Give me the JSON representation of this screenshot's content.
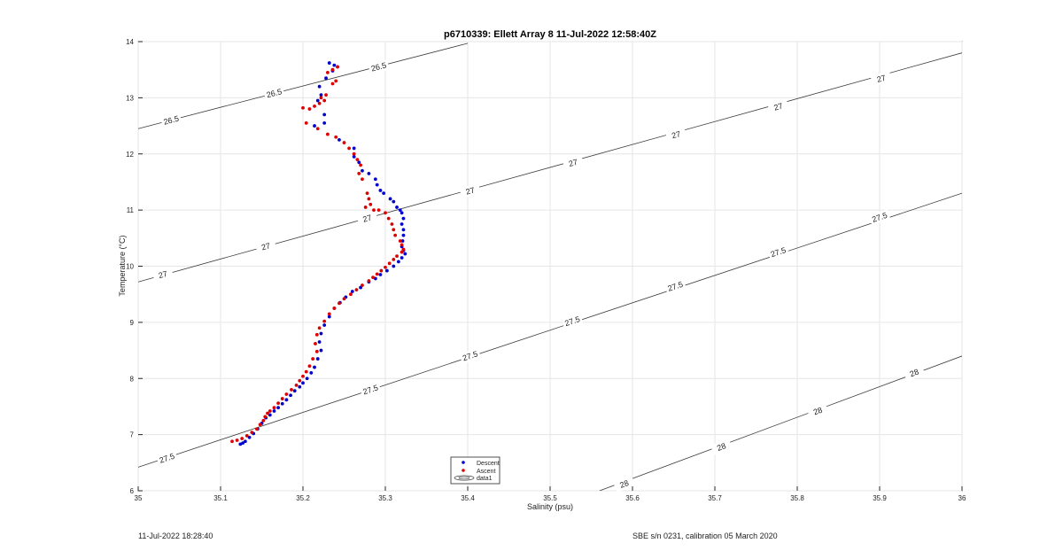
{
  "chart_data": {
    "type": "scatter",
    "title": "p6710339: Ellett Array 8 11-Jul-2022 12:58:40Z",
    "xlabel": "Salinity (psu)",
    "ylabel": "Temperature (°C)",
    "xlim": [
      35,
      36
    ],
    "ylim": [
      6,
      14
    ],
    "xticks": [
      "35",
      "35.1",
      "35.2",
      "35.3",
      "35.4",
      "35.5",
      "35.6",
      "35.7",
      "35.8",
      "35.9",
      "36"
    ],
    "yticks": [
      "6",
      "7",
      "8",
      "9",
      "10",
      "11",
      "12",
      "13",
      "14"
    ],
    "grid": true,
    "legend_position": "bottom-center",
    "series": [
      {
        "name": "Descent",
        "color": "#0000cc",
        "x": [
          35.232,
          35.238,
          35.242,
          35.236,
          35.228,
          35.22,
          35.222,
          35.218,
          35.226,
          35.214,
          35.226,
          35.244,
          35.262,
          35.262,
          35.268,
          35.272,
          35.28,
          35.288,
          35.29,
          35.294,
          35.298,
          35.306,
          35.31,
          35.314,
          35.318,
          35.32,
          35.322,
          35.32,
          35.322,
          35.322,
          35.321,
          35.32,
          35.322,
          35.324,
          35.32,
          35.316,
          35.31,
          35.302,
          35.294,
          35.288,
          35.28,
          35.27,
          35.26,
          35.252,
          35.245,
          35.238,
          35.232,
          35.226,
          35.222,
          35.22,
          35.222,
          35.218,
          35.214,
          35.21,
          35.205,
          35.2,
          35.196,
          35.19,
          35.185,
          35.18,
          35.175,
          35.17,
          35.165,
          35.16,
          35.155,
          35.15,
          35.145,
          35.14,
          35.135,
          35.13,
          35.127,
          35.124
        ],
        "y": [
          13.62,
          13.58,
          13.55,
          13.48,
          13.35,
          13.2,
          13.05,
          12.95,
          12.7,
          12.5,
          12.55,
          12.25,
          12.1,
          11.95,
          11.85,
          11.7,
          11.65,
          11.55,
          11.45,
          11.35,
          11.3,
          11.2,
          11.15,
          11.05,
          11.0,
          10.95,
          10.85,
          10.75,
          10.65,
          10.55,
          10.45,
          10.35,
          10.28,
          10.22,
          10.15,
          10.08,
          10.0,
          9.92,
          9.85,
          9.78,
          9.72,
          9.62,
          9.55,
          9.45,
          9.35,
          9.25,
          9.1,
          8.95,
          8.8,
          8.65,
          8.5,
          8.35,
          8.2,
          8.1,
          8.0,
          7.92,
          7.85,
          7.78,
          7.7,
          7.62,
          7.55,
          7.48,
          7.42,
          7.35,
          7.3,
          7.2,
          7.1,
          7.02,
          6.95,
          6.88,
          6.85,
          6.83
        ]
      },
      {
        "name": "Ascent",
        "color": "#dd0000",
        "x": [
          35.242,
          35.236,
          35.23,
          35.24,
          35.236,
          35.228,
          35.226,
          35.22,
          35.222,
          35.214,
          35.208,
          35.2,
          35.204,
          35.218,
          35.23,
          35.24,
          35.25,
          35.256,
          35.262,
          35.266,
          35.27,
          35.268,
          35.272,
          35.278,
          35.28,
          35.282,
          35.276,
          35.286,
          35.292,
          35.3,
          35.304,
          35.308,
          35.31,
          35.312,
          35.318,
          35.32,
          35.322,
          35.32,
          35.314,
          35.31,
          35.305,
          35.3,
          35.295,
          35.29,
          35.285,
          35.28,
          35.272,
          35.265,
          35.258,
          35.25,
          35.244,
          35.238,
          35.232,
          35.226,
          35.22,
          35.217,
          35.215,
          35.217,
          35.212,
          35.208,
          35.204,
          35.2,
          35.196,
          35.192,
          35.186,
          35.18,
          35.175,
          35.17,
          35.165,
          35.16,
          35.157,
          35.154,
          35.152,
          35.148,
          35.144,
          35.138,
          35.132,
          35.126,
          35.12,
          35.114
        ],
        "y": [
          13.55,
          13.5,
          13.45,
          13.3,
          13.25,
          13.05,
          12.95,
          12.9,
          13.0,
          12.85,
          12.8,
          12.82,
          12.55,
          12.45,
          12.35,
          12.3,
          12.2,
          12.1,
          12.0,
          11.9,
          11.8,
          11.65,
          11.55,
          11.3,
          11.2,
          11.1,
          11.05,
          11.0,
          11.0,
          10.95,
          10.85,
          10.75,
          10.65,
          10.55,
          10.45,
          10.38,
          10.3,
          10.25,
          10.18,
          10.12,
          10.05,
          9.98,
          9.92,
          9.86,
          9.8,
          9.74,
          9.66,
          9.58,
          9.5,
          9.42,
          9.34,
          9.25,
          9.15,
          9.02,
          8.9,
          8.78,
          8.62,
          8.48,
          8.35,
          8.22,
          8.12,
          8.04,
          7.96,
          7.88,
          7.8,
          7.72,
          7.64,
          7.56,
          7.48,
          7.42,
          7.38,
          7.32,
          7.25,
          7.18,
          7.1,
          7.04,
          6.98,
          6.93,
          6.9,
          6.88
        ]
      }
    ],
    "density_contours": [
      {
        "label": "26.5",
        "x": [
          35.0,
          35.4
        ],
        "y": [
          12.45,
          13.97
        ],
        "label_positions": [
          [
            35.04,
            12.6
          ],
          [
            35.165,
            13.08
          ],
          [
            35.292,
            13.55
          ]
        ]
      },
      {
        "label": "27",
        "x": [
          35.0,
          36.0
        ],
        "y": [
          9.72,
          13.8
        ],
        "label_positions": [
          [
            35.03,
            9.85
          ],
          [
            35.155,
            10.35
          ],
          [
            35.278,
            10.85
          ],
          [
            35.403,
            11.34
          ],
          [
            35.528,
            11.84
          ],
          [
            35.653,
            12.34
          ],
          [
            35.777,
            12.84
          ],
          [
            35.902,
            13.34
          ]
        ]
      },
      {
        "label": "27.5",
        "x": [
          35.0,
          36.0
        ],
        "y": [
          6.42,
          11.3
        ],
        "label_positions": [
          [
            35.035,
            6.58
          ],
          [
            35.282,
            7.8
          ],
          [
            35.403,
            8.4
          ],
          [
            35.527,
            9.02
          ],
          [
            35.652,
            9.64
          ],
          [
            35.777,
            10.25
          ],
          [
            35.9,
            10.87
          ]
        ]
      },
      {
        "label": "28",
        "x": [
          35.56,
          36.0
        ],
        "y": [
          6.0,
          8.4
        ],
        "label_positions": [
          [
            35.59,
            6.12
          ],
          [
            35.708,
            6.78
          ],
          [
            35.825,
            7.42
          ],
          [
            35.942,
            8.1
          ]
        ]
      }
    ],
    "legend": {
      "entries": [
        "Descent",
        "Ascent",
        "data1"
      ]
    }
  },
  "footer": {
    "left": "11-Jul-2022 18:28:40",
    "right": "SBE s/n 0231, calibration 05 March 2020"
  }
}
